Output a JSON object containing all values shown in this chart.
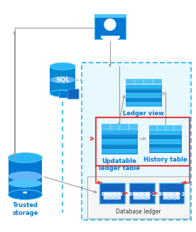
{
  "bg_color": "#ffffff",
  "arrow_gray": "#999999",
  "arrow_red": "#e53935",
  "label_fontsize": 6.0,
  "block_fontsize": 5.0,
  "db_ledger_label": "Database ledger",
  "trusted_storage_label": "Trusted\nstorage",
  "ledger_view_label": "Ledger view",
  "updatable_label": "Updatable\nledger table",
  "history_label": "History table",
  "dashed_box_color": "#29b6f6",
  "table_color_dark": "#0078d4",
  "table_header_color": "#4fc3f7",
  "table_row1": "#29b6f6",
  "table_row2": "#0288d1",
  "block_color": "#1565c0",
  "block_edge": "#4fc3f7",
  "sql_body": "#0288d1",
  "sql_top": "#29b6f6",
  "trusted_dark": "#0050a0",
  "trusted_mid": "#0078d4",
  "trusted_light": "#4fc3f7"
}
